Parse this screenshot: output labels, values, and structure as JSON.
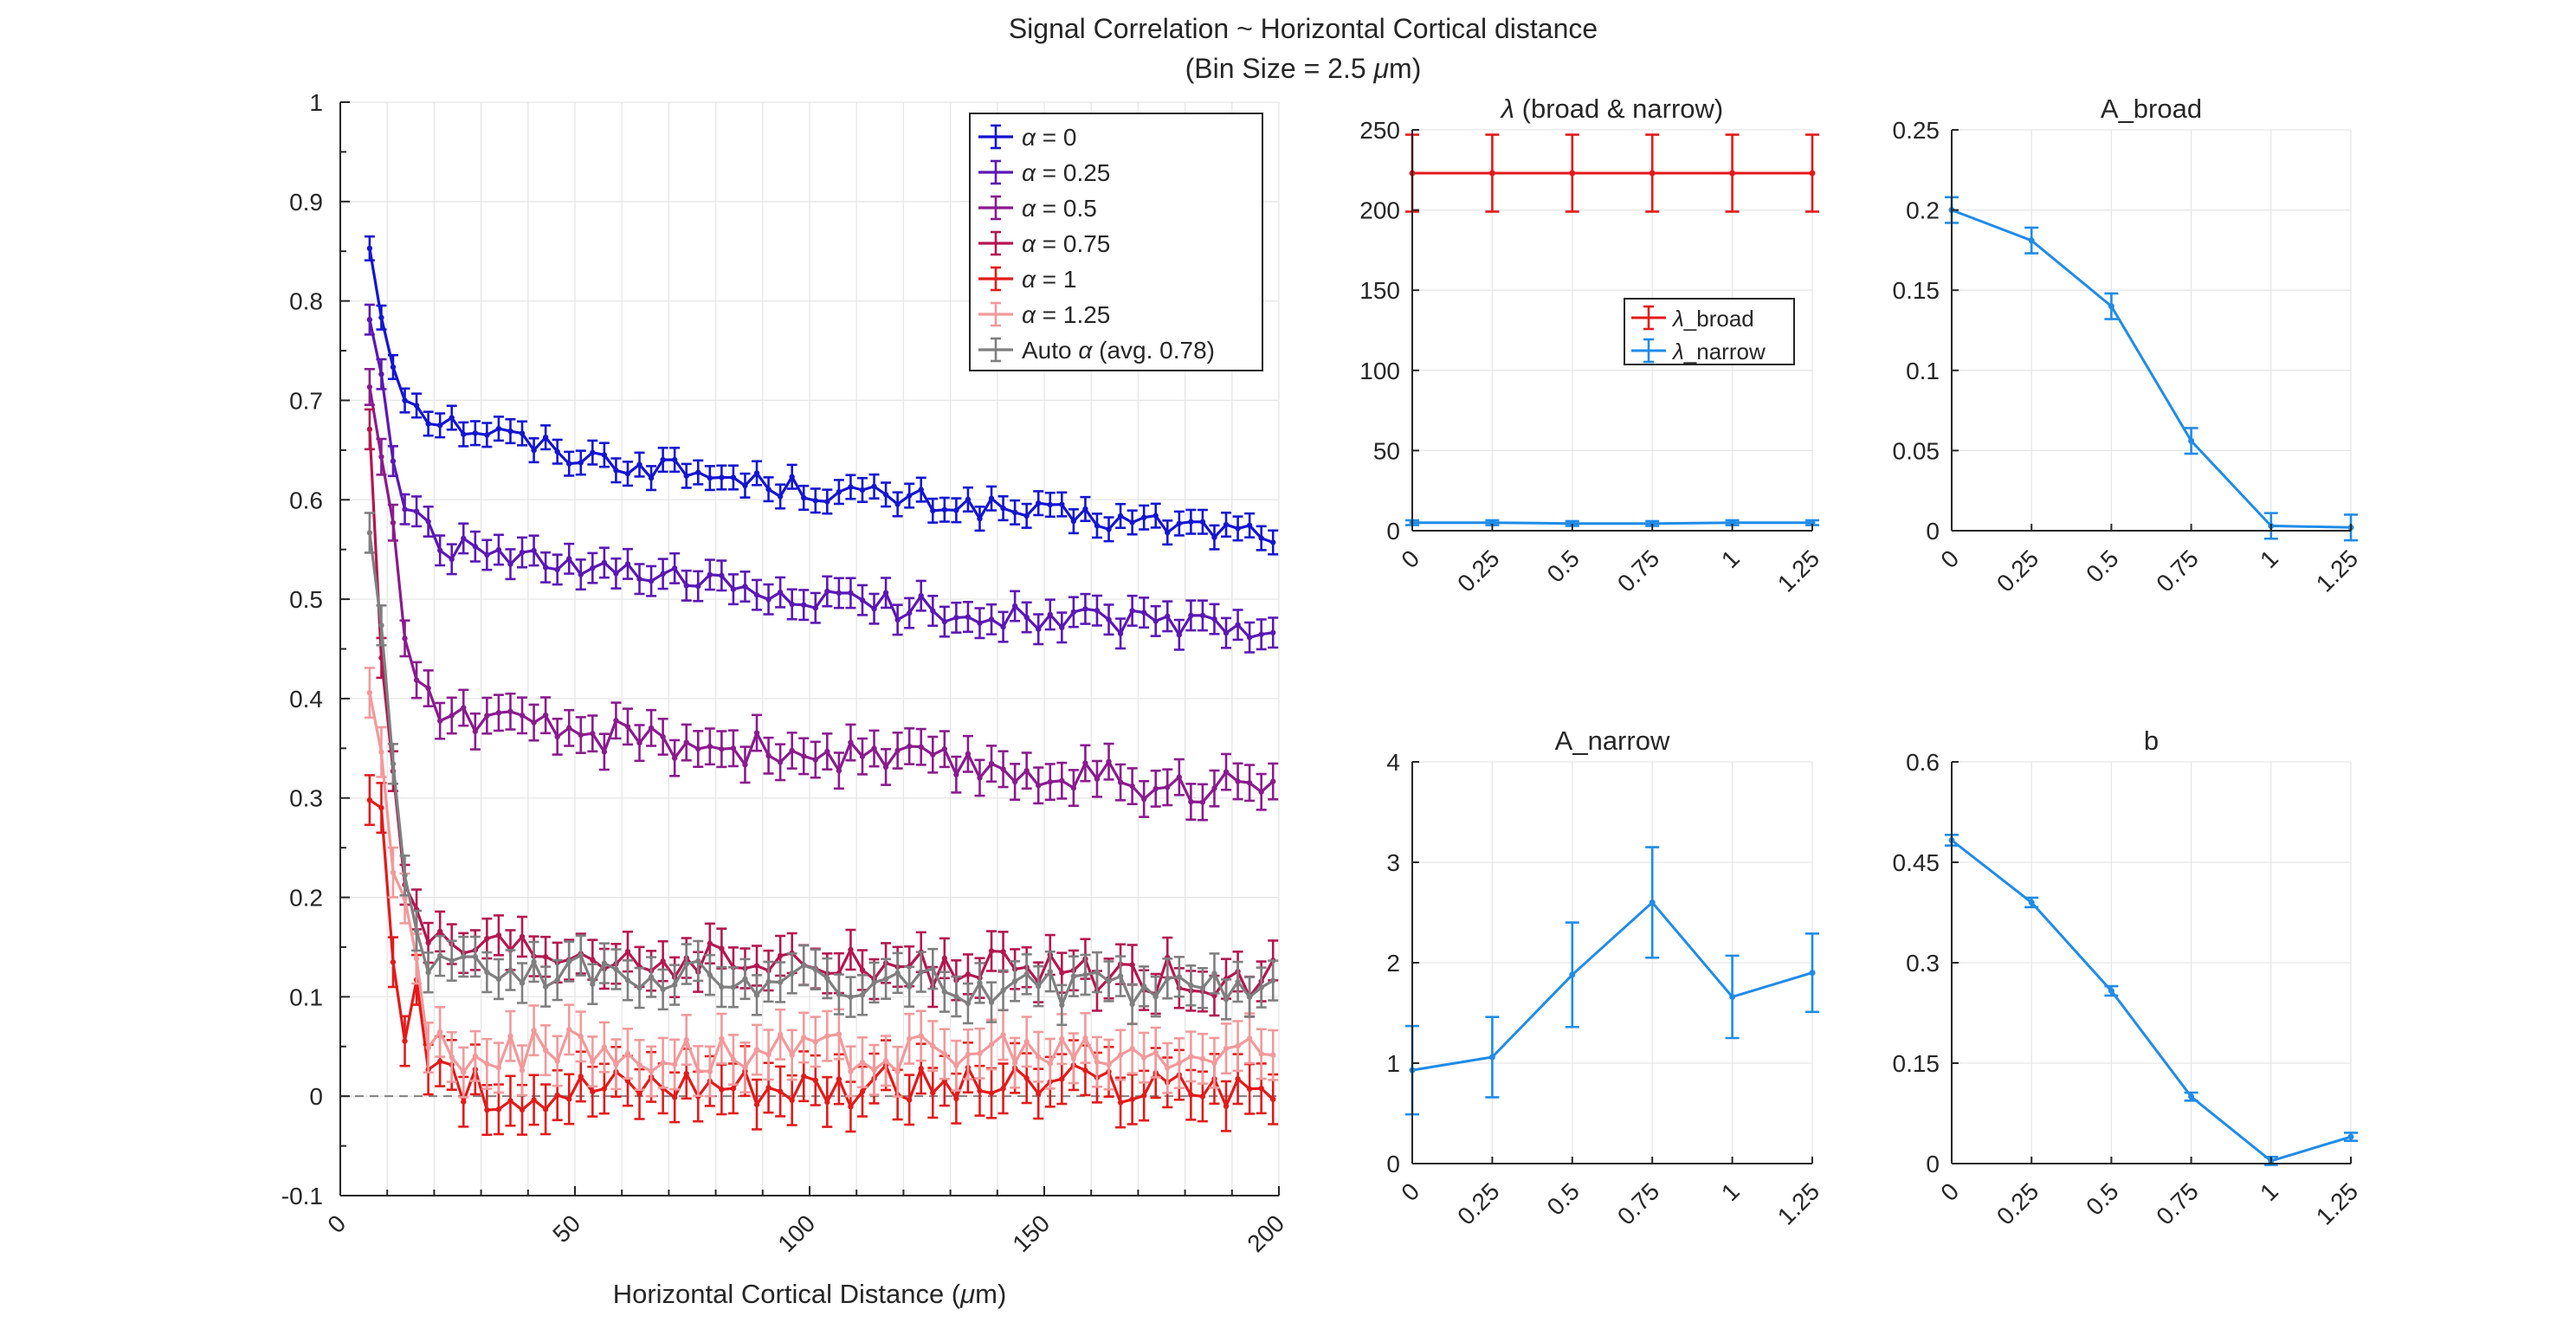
{
  "figure": {
    "title_line1": "Signal Correlation ~ Horizontal Cortical distance",
    "title_line2_prefix": "(Bin Size = 2.5 ",
    "title_line2_mu": "μ",
    "title_line2_suffix": "m)"
  },
  "chart_data": [
    {
      "type": "line",
      "title": "",
      "xlabel_prefix": "Horizontal Cortical Distance (",
      "xlabel_mu": "μ",
      "xlabel_suffix": "m)",
      "ylabel": "",
      "xlim": [
        0,
        200
      ],
      "ylim": [
        -0.1,
        1
      ],
      "xticks": [
        0,
        50,
        100,
        150,
        200
      ],
      "yticks": [
        -0.1,
        0,
        0.1,
        0.2,
        0.3,
        0.4,
        0.5,
        0.6,
        0.7,
        0.8,
        0.9,
        1
      ],
      "grid": true,
      "reference_line_y": 0,
      "legend_placement": "top-right",
      "x_bin_start": 6.25,
      "x_bin_step": 2.5,
      "series": [
        {
          "greek": "α",
          "name": " = 0",
          "color": "#1414d2",
          "anchors": [
            [
              6.25,
              0.855
            ],
            [
              8.75,
              0.79
            ],
            [
              11.25,
              0.74
            ],
            [
              13.75,
              0.71
            ],
            [
              16.25,
              0.695
            ],
            [
              18.75,
              0.685
            ],
            [
              25,
              0.675
            ],
            [
              35,
              0.665
            ],
            [
              50,
              0.645
            ],
            [
              75,
              0.627
            ],
            [
              100,
              0.61
            ],
            [
              125,
              0.598
            ],
            [
              150,
              0.585
            ],
            [
              175,
              0.575
            ],
            [
              200,
              0.566
            ]
          ],
          "err": 0.012,
          "noise": 0.012
        },
        {
          "greek": "α",
          "name": " = 0.25",
          "color": "#5b17b5",
          "anchors": [
            [
              6.25,
              0.785
            ],
            [
              8.75,
              0.715
            ],
            [
              11.25,
              0.64
            ],
            [
              13.75,
              0.6
            ],
            [
              16.25,
              0.575
            ],
            [
              18.75,
              0.565
            ],
            [
              25,
              0.55
            ],
            [
              35,
              0.54
            ],
            [
              50,
              0.53
            ],
            [
              75,
              0.515
            ],
            [
              100,
              0.5
            ],
            [
              125,
              0.49
            ],
            [
              150,
              0.482
            ],
            [
              175,
              0.475
            ],
            [
              200,
              0.469
            ]
          ],
          "err": 0.015,
          "noise": 0.014
        },
        {
          "greek": "α",
          "name": " = 0.5",
          "color": "#8a1a8e",
          "anchors": [
            [
              6.25,
              0.72
            ],
            [
              8.75,
              0.64
            ],
            [
              11.25,
              0.57
            ],
            [
              13.75,
              0.47
            ],
            [
              16.25,
              0.42
            ],
            [
              18.75,
              0.4
            ],
            [
              25,
              0.385
            ],
            [
              35,
              0.37
            ],
            [
              50,
              0.365
            ],
            [
              75,
              0.355
            ],
            [
              100,
              0.345
            ],
            [
              125,
              0.335
            ],
            [
              150,
              0.325
            ],
            [
              175,
              0.315
            ],
            [
              200,
              0.31
            ]
          ],
          "err": 0.018,
          "noise": 0.018
        },
        {
          "greek": "α",
          "name": " = 0.75",
          "color": "#b41650",
          "anchors": [
            [
              6.25,
              0.68
            ],
            [
              8.75,
              0.45
            ],
            [
              11.25,
              0.31
            ],
            [
              13.75,
              0.22
            ],
            [
              16.25,
              0.17
            ],
            [
              18.75,
              0.15
            ],
            [
              25,
              0.145
            ],
            [
              50,
              0.14
            ],
            [
              75,
              0.135
            ],
            [
              100,
              0.13
            ],
            [
              125,
              0.128
            ],
            [
              150,
              0.125
            ],
            [
              175,
              0.12
            ],
            [
              200,
              0.118
            ]
          ],
          "err": 0.02,
          "noise": 0.02
        },
        {
          "greek": "α",
          "name": " = 1",
          "color": "#e31a1a",
          "anchors": [
            [
              6.25,
              0.31
            ],
            [
              8.75,
              0.27
            ],
            [
              11.25,
              0.15
            ],
            [
              13.75,
              0.06
            ],
            [
              16.25,
              0.12
            ],
            [
              18.75,
              0.03
            ],
            [
              25,
              0.005
            ],
            [
              50,
              0.01
            ],
            [
              75,
              0.015
            ],
            [
              100,
              0.012
            ],
            [
              125,
              0.01
            ],
            [
              150,
              0.01
            ],
            [
              175,
              0.01
            ],
            [
              200,
              0.008
            ]
          ],
          "err": 0.025,
          "noise": 0.022
        },
        {
          "greek": "α",
          "name": " = 1.25",
          "color": "#f2999b",
          "anchors": [
            [
              6.25,
              0.42
            ],
            [
              8.75,
              0.34
            ],
            [
              11.25,
              0.23
            ],
            [
              13.75,
              0.2
            ],
            [
              16.25,
              0.12
            ],
            [
              18.75,
              0.06
            ],
            [
              25,
              0.045
            ],
            [
              50,
              0.045
            ],
            [
              75,
              0.045
            ],
            [
              100,
              0.045
            ],
            [
              125,
              0.044
            ],
            [
              150,
              0.043
            ],
            [
              175,
              0.042
            ],
            [
              200,
              0.04
            ]
          ],
          "err": 0.025,
          "noise": 0.022
        },
        {
          "greek": "α",
          "name_prefix": "Auto ",
          "name": " (avg. 0.78)",
          "color": "#7f7f7f",
          "anchors": [
            [
              6.25,
              0.58
            ],
            [
              8.75,
              0.48
            ],
            [
              11.25,
              0.33
            ],
            [
              13.75,
              0.22
            ],
            [
              16.25,
              0.17
            ],
            [
              18.75,
              0.14
            ],
            [
              25,
              0.13
            ],
            [
              50,
              0.125
            ],
            [
              75,
              0.12
            ],
            [
              100,
              0.115
            ],
            [
              125,
              0.112
            ],
            [
              150,
              0.11
            ],
            [
              175,
              0.108
            ],
            [
              200,
              0.105
            ]
          ],
          "err": 0.02,
          "noise": 0.018
        }
      ]
    },
    {
      "type": "line",
      "title_greek": "λ",
      "title": " (broad & narrow)",
      "categories": [
        "0",
        "0.25",
        "0.5",
        "0.75",
        "1",
        "1.25"
      ],
      "ylim": [
        0,
        250
      ],
      "yticks": [
        0,
        50,
        100,
        150,
        200,
        250
      ],
      "grid": true,
      "legend_placement": "center-right",
      "series": [
        {
          "greek": "λ",
          "name": "_broad",
          "color": "#e31a1a",
          "values": [
            223,
            223,
            223,
            223,
            223,
            223
          ],
          "err": [
            24,
            24,
            24,
            24,
            24,
            24
          ]
        },
        {
          "greek": "λ",
          "name": "_narrow",
          "color": "#1f8be8",
          "values": [
            5,
            5,
            4.5,
            4.5,
            5,
            5
          ],
          "err": [
            1.5,
            1.5,
            1.5,
            1.5,
            1.5,
            1.5
          ]
        }
      ]
    },
    {
      "type": "line",
      "title": "A_broad",
      "categories": [
        "0",
        "0.25",
        "0.5",
        "0.75",
        "1",
        "1.25"
      ],
      "ylim": [
        0,
        0.25
      ],
      "yticks": [
        0,
        0.05,
        0.1,
        0.15,
        0.2,
        0.25
      ],
      "grid": true,
      "series": [
        {
          "color": "#1f8be8",
          "values": [
            0.2,
            0.181,
            0.14,
            0.056,
            0.003,
            0.002
          ],
          "err": [
            0.008,
            0.008,
            0.008,
            0.008,
            0.008,
            0.008
          ]
        }
      ]
    },
    {
      "type": "line",
      "title": "A_narrow",
      "categories": [
        "0",
        "0.25",
        "0.5",
        "0.75",
        "1",
        "1.25"
      ],
      "ylim": [
        0,
        4
      ],
      "yticks": [
        0,
        1,
        2,
        3,
        4
      ],
      "grid": true,
      "series": [
        {
          "color": "#1f8be8",
          "values": [
            0.93,
            1.06,
            1.88,
            2.6,
            1.66,
            1.9
          ],
          "err": [
            0.44,
            0.4,
            0.52,
            0.55,
            0.41,
            0.39
          ]
        }
      ]
    },
    {
      "type": "line",
      "title": "b",
      "categories": [
        "0",
        "0.25",
        "0.5",
        "0.75",
        "1",
        "1.25"
      ],
      "ylim": [
        0,
        0.6
      ],
      "yticks": [
        0,
        0.15,
        0.3,
        0.45,
        0.6
      ],
      "grid": true,
      "series": [
        {
          "color": "#1f8be8",
          "values": [
            0.483,
            0.39,
            0.258,
            0.1,
            0.004,
            0.04
          ],
          "err": [
            0.008,
            0.007,
            0.007,
            0.006,
            0.006,
            0.006
          ]
        }
      ]
    }
  ]
}
